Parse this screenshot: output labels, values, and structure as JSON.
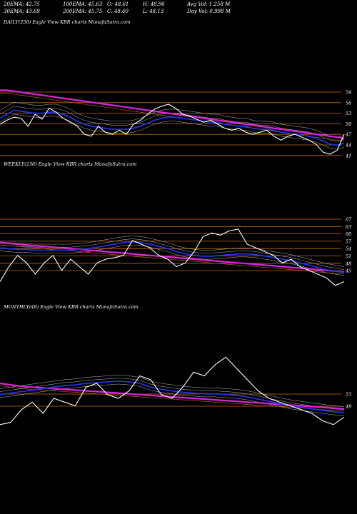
{
  "header": {
    "row1": [
      "20EMA: 42.75",
      "100EMA: 45.63",
      "O: 48.61",
      "H: 48.96",
      "Avg Vol: 1.258  M"
    ],
    "row2": [
      "30EMA: 43.69",
      "200EMA: 45.75",
      "C: 48.60",
      "L: 48.13",
      "Day Vol: 0.998  M"
    ]
  },
  "chart_data": [
    {
      "type": "line",
      "title": "DAILY(250) Eagle  View  KBR charts MunafaSutra.com",
      "yticks": [
        "59",
        "56",
        "53",
        "50",
        "47",
        "44",
        "41"
      ],
      "price_color": "#ffffff",
      "ema_color": "#2233dd",
      "long_ema_color": "#dd22dd",
      "price": [
        40,
        44,
        47,
        46,
        38,
        50,
        45,
        56,
        52,
        46,
        42,
        38,
        30,
        28,
        38,
        32,
        30,
        34,
        30,
        40,
        44,
        50,
        55,
        58,
        60,
        56,
        50,
        48,
        45,
        42,
        44,
        40,
        36,
        34,
        36,
        32,
        30,
        32,
        34,
        28,
        24,
        28,
        30,
        27,
        24,
        20,
        12,
        10,
        14,
        30
      ],
      "ema": [
        46,
        50,
        54,
        53,
        52,
        51,
        51,
        52,
        52,
        50,
        47,
        43,
        40,
        38,
        37,
        36,
        35,
        35,
        35,
        36,
        38,
        41,
        44,
        46,
        47,
        47,
        46,
        45,
        44,
        43,
        42,
        42,
        40,
        39,
        38,
        38,
        36,
        35,
        35,
        34,
        32,
        31,
        30,
        29,
        28,
        26,
        23,
        20,
        19,
        21
      ],
      "long_ema": [
        74,
        74,
        73,
        72,
        71,
        70,
        69,
        68,
        67,
        66,
        65,
        64,
        63,
        62,
        61,
        60,
        59,
        58,
        57,
        56,
        55,
        54,
        53,
        52,
        51,
        50,
        49,
        48,
        47,
        46,
        45,
        44,
        43,
        42,
        41,
        40,
        39,
        38,
        37,
        36,
        35,
        34,
        33,
        32,
        31,
        30,
        29,
        28,
        27,
        26
      ]
    },
    {
      "type": "line",
      "title": "WEEKLY(236) Eagle  View  KBR charts MunafaSutra.com",
      "yticks": [
        "67",
        "63",
        "60",
        "57",
        "54",
        "51",
        "48",
        "45"
      ],
      "price_color": "#ffffff",
      "ema_color": "#2233dd",
      "long_ema_color": "#dd22dd",
      "price": [
        10,
        30,
        45,
        35,
        20,
        35,
        45,
        25,
        40,
        30,
        20,
        35,
        40,
        42,
        45,
        65,
        60,
        55,
        45,
        40,
        30,
        35,
        50,
        70,
        75,
        72,
        78,
        80,
        60,
        55,
        50,
        45,
        35,
        40,
        30,
        25,
        20,
        15,
        5,
        10
      ],
      "ema": [
        55,
        54,
        53,
        53,
        52,
        52,
        52,
        52,
        52,
        53,
        54,
        56,
        58,
        60,
        62,
        63,
        62,
        60,
        57,
        54,
        50,
        47,
        45,
        44,
        44,
        45,
        46,
        47,
        47,
        46,
        44,
        42,
        40,
        38,
        35,
        32,
        29,
        26,
        24,
        22
      ],
      "long_ema": [
        62,
        61,
        60,
        59,
        58,
        57,
        56,
        55,
        54,
        53,
        52,
        51,
        50,
        49,
        48,
        47,
        46,
        45,
        44,
        43,
        42,
        41,
        40,
        39,
        38,
        37,
        36,
        35,
        34,
        33,
        32,
        31,
        30,
        29,
        28,
        27,
        26,
        25,
        24,
        23
      ]
    },
    {
      "type": "line",
      "title": "MONTHLY(48) Eagle  View  KBR charts MunafaSutra.com",
      "yticks": [
        "53",
        "49"
      ],
      "price_color": "#ffffff",
      "ema_color": "#2233dd",
      "long_ema_color": "#dd22dd",
      "price": [
        5,
        8,
        25,
        35,
        20,
        40,
        35,
        30,
        55,
        60,
        45,
        40,
        50,
        70,
        65,
        45,
        40,
        55,
        75,
        70,
        85,
        95,
        80,
        65,
        50,
        40,
        35,
        30,
        25,
        20,
        10,
        5,
        15
      ],
      "ema": [
        45,
        47,
        49,
        51,
        53,
        55,
        57,
        58,
        60,
        61,
        62,
        63,
        62,
        60,
        55,
        52,
        50,
        48,
        47,
        46,
        46,
        45,
        44,
        42,
        39,
        36,
        33,
        30,
        28,
        26,
        24,
        22,
        21
      ],
      "long_ema": [
        60,
        58,
        56,
        55,
        54,
        53,
        52,
        51,
        50,
        49,
        48,
        47,
        46,
        45,
        44,
        43,
        42,
        41,
        40,
        39,
        38,
        37,
        36,
        35,
        34,
        33,
        32,
        31,
        30,
        29,
        28,
        27,
        26
      ]
    }
  ]
}
